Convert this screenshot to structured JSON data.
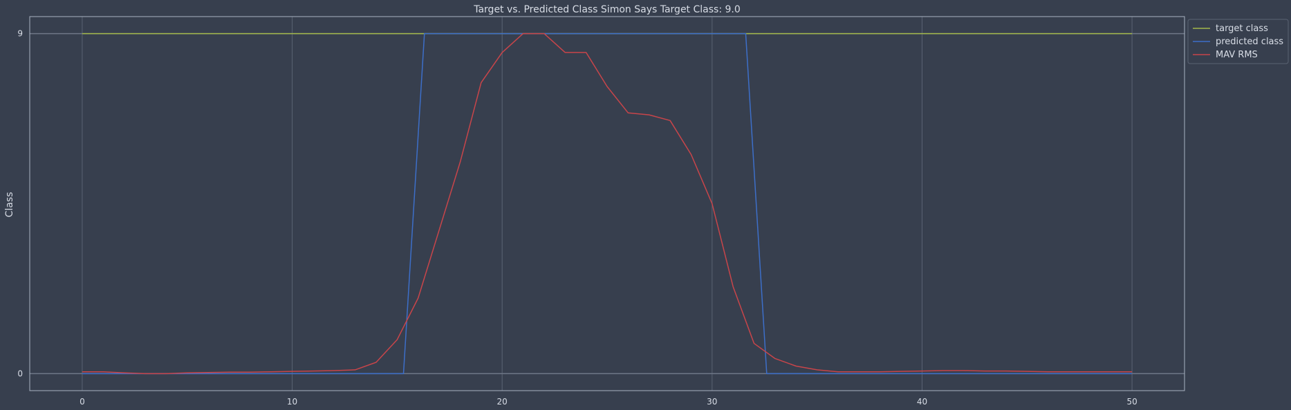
{
  "chart_data": {
    "type": "line",
    "title": "Target vs. Predicted Class Simon Says Target Class: 9.0",
    "xlabel": "",
    "ylabel": "Class",
    "xlim": [
      -2.5,
      52.5
    ],
    "ylim": [
      -0.45,
      9.45
    ],
    "xticks": [
      0,
      10,
      20,
      30,
      40,
      50
    ],
    "yticks": [
      0,
      9
    ],
    "grid": true,
    "legend_position": "outside-top-right",
    "colors": {
      "background": "#373f4e",
      "frame": "#aab3c2",
      "grid": "#5a6373",
      "text": "#d8dde6"
    },
    "series": [
      {
        "name": "target class",
        "color": "#a3b84a",
        "x": [
          0,
          50
        ],
        "y": [
          9,
          9
        ]
      },
      {
        "name": "predicted class",
        "color": "#3d6fc9",
        "x": [
          0,
          15.3,
          16.3,
          31.6,
          32.6,
          50
        ],
        "y": [
          0,
          0,
          9,
          9,
          0,
          0
        ]
      },
      {
        "name": "MAV RMS",
        "color": "#c9454a",
        "x": [
          0,
          1,
          2,
          3,
          4,
          5,
          6,
          7,
          8,
          9,
          10,
          11,
          12,
          13,
          14,
          15,
          16,
          17,
          18,
          19,
          20,
          21,
          22,
          23,
          24,
          25,
          26,
          27,
          28,
          29,
          30,
          31,
          32,
          33,
          34,
          35,
          36,
          37,
          38,
          39,
          40,
          41,
          42,
          43,
          44,
          45,
          46,
          47,
          48,
          49,
          50
        ],
        "y": [
          0.05,
          0.05,
          0.02,
          0.0,
          0.0,
          0.02,
          0.03,
          0.04,
          0.04,
          0.05,
          0.06,
          0.07,
          0.08,
          0.1,
          0.3,
          0.9,
          2.0,
          3.8,
          5.6,
          7.7,
          8.5,
          9.0,
          9.0,
          8.5,
          8.5,
          7.6,
          6.9,
          6.85,
          6.7,
          5.8,
          4.5,
          2.3,
          0.8,
          0.4,
          0.2,
          0.1,
          0.05,
          0.05,
          0.05,
          0.06,
          0.07,
          0.08,
          0.08,
          0.07,
          0.07,
          0.06,
          0.05,
          0.05,
          0.05,
          0.05,
          0.05
        ]
      }
    ]
  }
}
